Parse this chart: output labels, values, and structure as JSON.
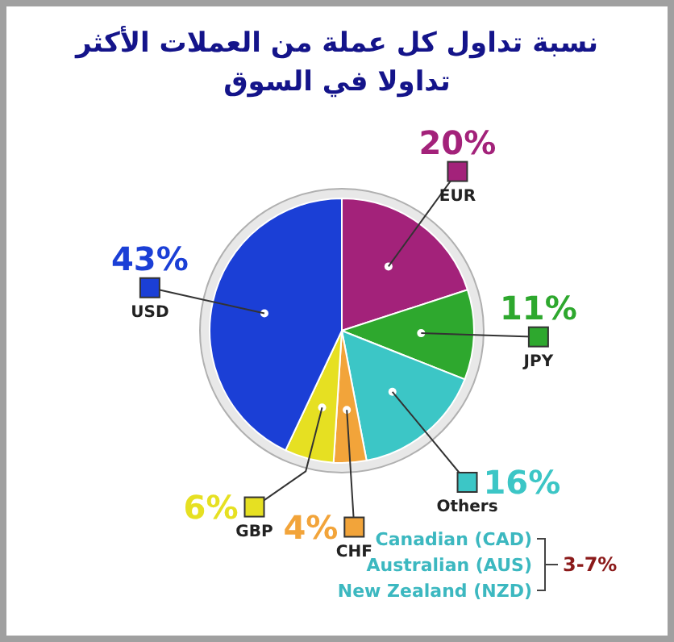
{
  "chart_data": {
    "type": "pie",
    "title": "نسبة تداول كل عملة من العملات الأكثر تداولا في السوق",
    "categories": [
      "EUR",
      "JPY",
      "Others",
      "CHF",
      "GBP",
      "USD"
    ],
    "values": [
      20,
      11,
      16,
      4,
      6,
      43
    ],
    "colors": [
      "#a3227a",
      "#2ea82e",
      "#3cc6c6",
      "#f2a43a",
      "#e6e022",
      "#1b3fd6"
    ],
    "value_labels": [
      "20%",
      "11%",
      "16%",
      "4%",
      "6%",
      "43%"
    ],
    "legend": "right",
    "annotations": [
      "Canadian (CAD)",
      "Australian (AUS)",
      "New Zealand (NZD)",
      "3-7%"
    ]
  }
}
